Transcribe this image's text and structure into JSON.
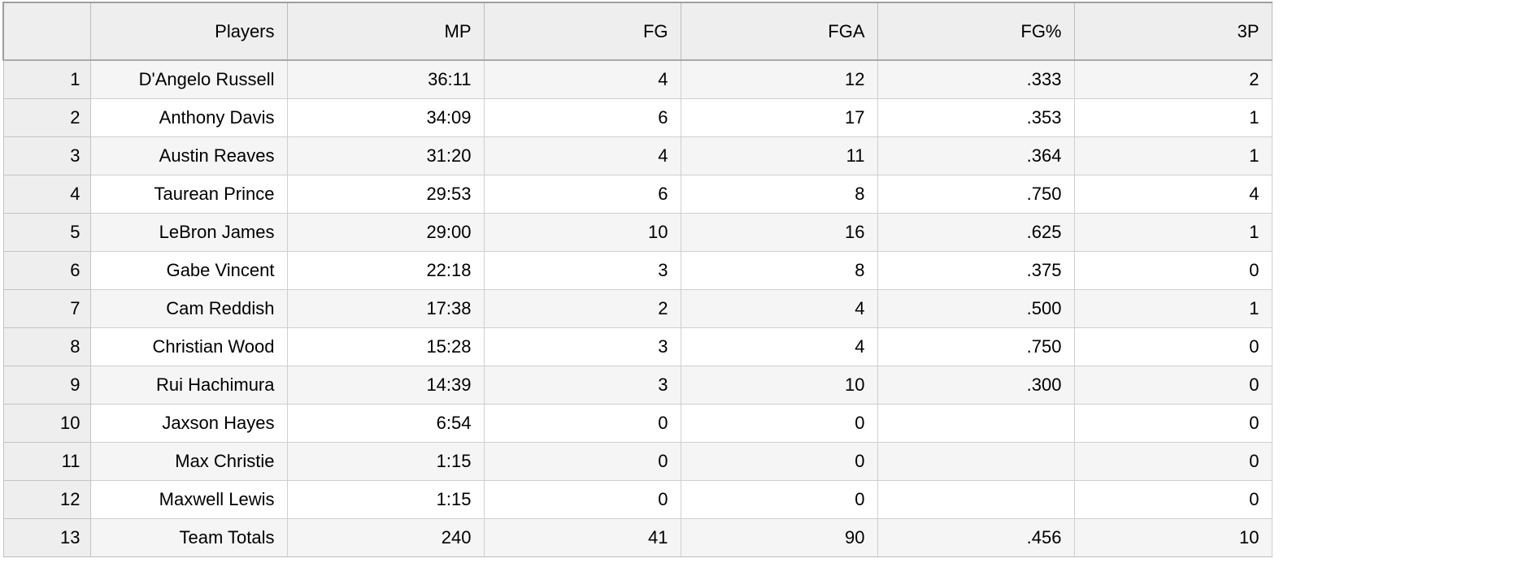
{
  "table": {
    "columns": [
      "",
      "Players",
      "MP",
      "FG",
      "FGA",
      "FG%",
      "3P"
    ],
    "rows": [
      {
        "n": "1",
        "player": "D'Angelo Russell",
        "mp": "36:11",
        "fg": "4",
        "fga": "12",
        "fgp": ".333",
        "tp": "2"
      },
      {
        "n": "2",
        "player": "Anthony Davis",
        "mp": "34:09",
        "fg": "6",
        "fga": "17",
        "fgp": ".353",
        "tp": "1"
      },
      {
        "n": "3",
        "player": "Austin Reaves",
        "mp": "31:20",
        "fg": "4",
        "fga": "11",
        "fgp": ".364",
        "tp": "1"
      },
      {
        "n": "4",
        "player": "Taurean Prince",
        "mp": "29:53",
        "fg": "6",
        "fga": "8",
        "fgp": ".750",
        "tp": "4"
      },
      {
        "n": "5",
        "player": "LeBron James",
        "mp": "29:00",
        "fg": "10",
        "fga": "16",
        "fgp": ".625",
        "tp": "1"
      },
      {
        "n": "6",
        "player": "Gabe Vincent",
        "mp": "22:18",
        "fg": "3",
        "fga": "8",
        "fgp": ".375",
        "tp": "0"
      },
      {
        "n": "7",
        "player": "Cam Reddish",
        "mp": "17:38",
        "fg": "2",
        "fga": "4",
        "fgp": ".500",
        "tp": "1"
      },
      {
        "n": "8",
        "player": "Christian Wood",
        "mp": "15:28",
        "fg": "3",
        "fga": "4",
        "fgp": ".750",
        "tp": "0"
      },
      {
        "n": "9",
        "player": "Rui Hachimura",
        "mp": "14:39",
        "fg": "3",
        "fga": "10",
        "fgp": ".300",
        "tp": "0"
      },
      {
        "n": "10",
        "player": "Jaxson Hayes",
        "mp": "6:54",
        "fg": "0",
        "fga": "0",
        "fgp": "",
        "tp": "0"
      },
      {
        "n": "11",
        "player": "Max Christie",
        "mp": "1:15",
        "fg": "0",
        "fga": "0",
        "fgp": "",
        "tp": "0"
      },
      {
        "n": "12",
        "player": "Maxwell Lewis",
        "mp": "1:15",
        "fg": "0",
        "fga": "0",
        "fgp": "",
        "tp": "0"
      },
      {
        "n": "13",
        "player": "Team Totals",
        "mp": "240",
        "fg": "41",
        "fga": "90",
        "fgp": ".456",
        "tp": "10"
      }
    ]
  },
  "colors": {
    "header_bg": "#eeeeee",
    "row_alt_bg": "#f5f5f5",
    "grid_line": "#cfcfcf"
  }
}
